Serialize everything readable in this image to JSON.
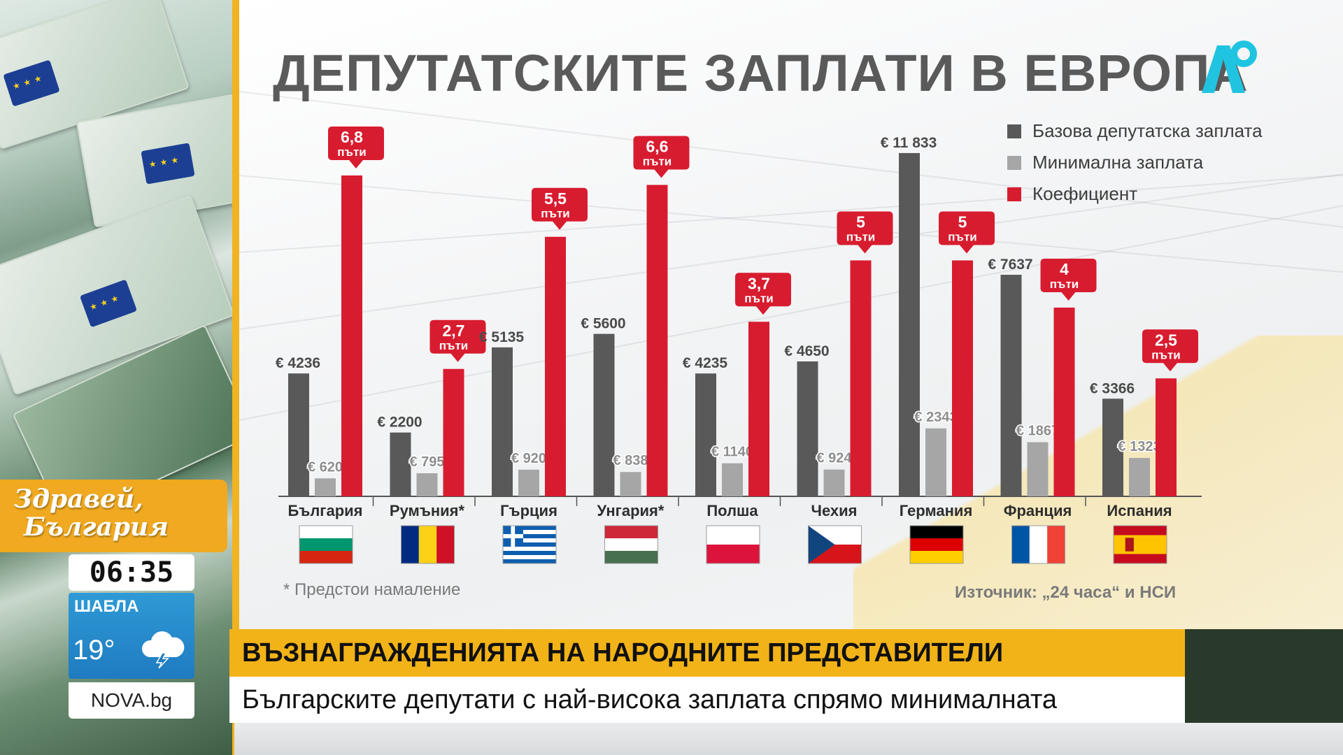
{
  "title": "ДЕПУТАТСКИТЕ ЗАПЛАТИ В ЕВРОПА",
  "logo_icon": "nova-logo-icon",
  "legend": {
    "base": "Базова депутатска заплата",
    "minimum": "Минимална заплата",
    "coefficient": "Коефициент"
  },
  "colors": {
    "base": "#595959",
    "minimum": "#a6a6a6",
    "coefficient": "#d81c2f",
    "accent_yellow": "#f2b318",
    "weather_blue": "#1f7bc0"
  },
  "chart_data": {
    "type": "bar",
    "categories": [
      "България",
      "Румъния*",
      "Гърция",
      "Унгария*",
      "Полша",
      "Чехия",
      "Германия",
      "Франция",
      "Испания"
    ],
    "currency": "€",
    "series": [
      {
        "name": "Базова депутатска заплата",
        "values": [
          4236,
          2200,
          5135,
          5600,
          4235,
          4650,
          11833,
          7637,
          3366
        ],
        "labels": [
          "€ 4236",
          "€ 2200",
          "€ 5135",
          "€ 5600",
          "€ 4235",
          "€ 4650",
          "€ 11 833",
          "€ 7637",
          "€ 3366"
        ]
      },
      {
        "name": "Минимална заплата",
        "values": [
          620,
          795,
          920,
          838,
          1140,
          924,
          2343,
          1867,
          1323
        ],
        "labels": [
          "€ 620",
          "€ 795",
          "€ 920",
          "€ 838",
          "€ 1140",
          "€ 924",
          "€ 2343",
          "€ 1867",
          "€ 1323"
        ]
      },
      {
        "name": "Коефициент",
        "values": [
          6.8,
          2.7,
          5.5,
          6.6,
          3.7,
          5,
          5,
          4,
          2.5
        ],
        "labels": [
          "6,8",
          "2,7",
          "5,5",
          "6,6",
          "3,7",
          "5",
          "5",
          "4",
          "2,5"
        ],
        "unit": "пъти"
      }
    ],
    "flags": [
      "bulgaria-flag",
      "romania-flag",
      "greece-flag",
      "hungary-flag",
      "poland-flag",
      "czech-flag",
      "germany-flag",
      "france-flag",
      "spain-flag"
    ],
    "legend_position": "top-right",
    "grid": false
  },
  "footnote": "* Предстои намаление",
  "source": "Източник: „24 часа“ и НСИ",
  "show": {
    "title_line1": "Здравей,",
    "title_line2": "България",
    "time": "06:35",
    "weather_city": "ШАБЛА",
    "weather_temp": "19°",
    "weather_icon": "cloud-lightning-icon",
    "site": "NOVA.bg"
  },
  "lower_third": {
    "headline": "ВЪЗНАГРАЖДЕНИЯТА НА НАРОДНИТЕ ПРЕДСТАВИТЕЛИ",
    "subline": "Българските депутати с най-висока заплата спрямо минималната"
  }
}
